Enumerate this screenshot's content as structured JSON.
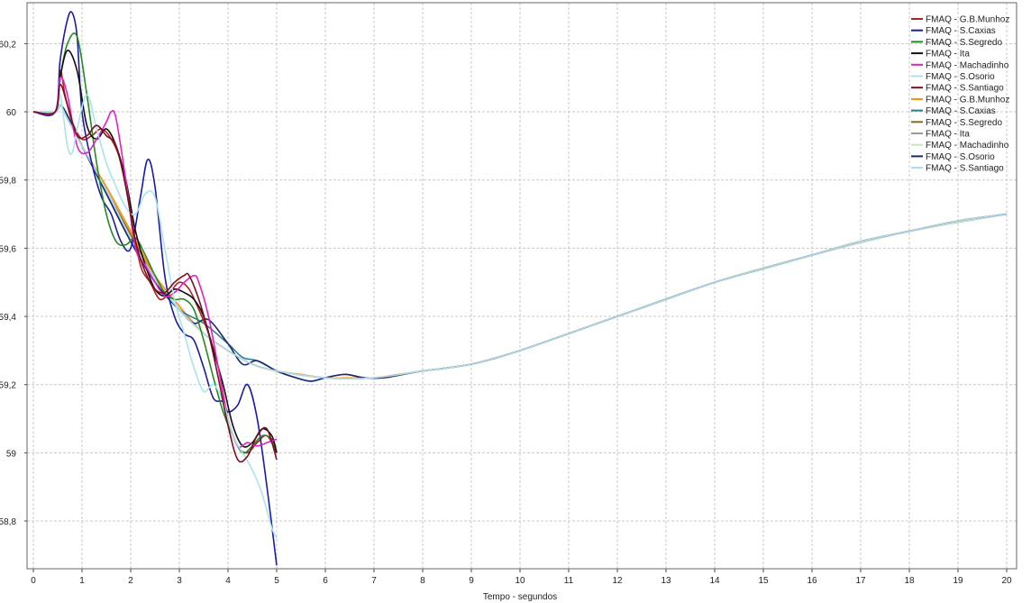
{
  "chart_data": {
    "type": "line",
    "title": "",
    "xlabel": "Tempo - segundos",
    "ylabel": "",
    "xlim": [
      0,
      20
    ],
    "ylim": [
      58.66,
      60.32
    ],
    "xticks": [
      0,
      1,
      2,
      3,
      4,
      5,
      6,
      7,
      8,
      9,
      10,
      11,
      12,
      13,
      14,
      15,
      16,
      17,
      18,
      19,
      20
    ],
    "xtick_labels": [
      "0",
      "1",
      "2",
      "3",
      "4",
      "5",
      "6",
      "7",
      "8",
      "9",
      "10",
      "11",
      "12",
      "13",
      "14",
      "15",
      "16",
      "17",
      "18",
      "19",
      "20"
    ],
    "yticks": [
      58.8,
      59,
      59.2,
      59.4,
      59.6,
      59.8,
      60,
      60.2
    ],
    "ytick_labels": [
      "58,8",
      "59",
      "59,2",
      "59,4",
      "59,6",
      "59,8",
      "60",
      "60,2"
    ],
    "grid": true,
    "legend_position": "top-right",
    "series": [
      {
        "name": "FMAQ - G.B.Munhoz",
        "color": "#b22222",
        "x": [
          0,
          0.45,
          0.55,
          0.65,
          0.8,
          1.0,
          1.2,
          1.4,
          1.6,
          1.8,
          2.0,
          2.2,
          2.4,
          2.6,
          2.8,
          3.0,
          3.2,
          3.4,
          3.6,
          3.8,
          4.0,
          4.2,
          4.4,
          4.6,
          4.8,
          5.0
        ],
        "y": [
          60,
          60,
          60.12,
          60.05,
          59.97,
          59.92,
          59.93,
          59.95,
          59.92,
          59.85,
          59.7,
          59.55,
          59.5,
          59.45,
          59.47,
          59.5,
          59.48,
          59.42,
          59.35,
          59.25,
          59.1,
          59.02,
          59.0,
          59.03,
          59.05,
          59.0
        ]
      },
      {
        "name": "FMAQ - S.Caxias",
        "color": "#1a1aa6",
        "x": [
          0,
          0.45,
          0.55,
          0.7,
          0.8,
          0.9,
          1.0,
          1.2,
          1.4,
          1.6,
          1.8,
          2.0,
          2.2,
          2.35,
          2.5,
          2.7,
          2.9,
          3.1,
          3.3,
          3.5,
          3.7,
          3.9,
          4.0,
          4.2,
          4.4,
          4.6,
          4.8,
          5.0
        ],
        "y": [
          60,
          60,
          60.15,
          60.27,
          60.29,
          60.22,
          60.0,
          59.85,
          59.75,
          59.7,
          59.62,
          59.6,
          59.75,
          59.86,
          59.78,
          59.52,
          59.4,
          59.35,
          59.33,
          59.25,
          59.16,
          59.15,
          59.12,
          59.14,
          59.2,
          59.1,
          58.9,
          58.67
        ]
      },
      {
        "name": "FMAQ - S.Segredo",
        "color": "#228b22",
        "x": [
          0,
          0.45,
          0.55,
          0.7,
          0.9,
          1.1,
          1.3,
          1.5,
          1.7,
          1.9,
          2.1,
          2.3,
          2.5,
          2.7,
          2.9,
          3.1,
          3.3,
          3.5,
          3.7,
          3.9,
          4.1,
          4.3,
          4.5,
          4.7,
          4.9,
          5.0
        ],
        "y": [
          60,
          60,
          60.1,
          60.2,
          60.22,
          60.05,
          59.85,
          59.7,
          59.62,
          59.61,
          59.63,
          59.58,
          59.52,
          59.47,
          59.45,
          59.45,
          59.42,
          59.33,
          59.22,
          59.12,
          59.05,
          59.0,
          59.02,
          59.05,
          59.04,
          59.0
        ]
      },
      {
        "name": "FMAQ - Ita",
        "color": "#111111",
        "x": [
          0,
          0.45,
          0.55,
          0.7,
          0.9,
          1.1,
          1.3,
          1.5,
          1.7,
          1.9,
          2.1,
          2.3,
          2.5,
          2.7,
          2.9,
          3.1,
          3.3,
          3.5,
          3.7,
          3.9,
          4.1,
          4.3,
          4.5,
          4.7,
          4.9,
          5.0
        ],
        "y": [
          60,
          60,
          60.1,
          60.18,
          60.12,
          59.96,
          59.92,
          59.95,
          59.9,
          59.8,
          59.65,
          59.55,
          59.48,
          59.46,
          59.48,
          59.47,
          59.45,
          59.4,
          59.3,
          59.2,
          59.08,
          59.02,
          59.03,
          59.07,
          59.05,
          59.0
        ]
      },
      {
        "name": "FMAQ - Machadinho",
        "color": "#e020c8",
        "x": [
          0,
          0.45,
          0.55,
          0.7,
          0.9,
          1.1,
          1.3,
          1.5,
          1.6,
          1.7,
          1.9,
          2.1,
          2.3,
          2.5,
          2.7,
          2.9,
          3.1,
          3.3,
          3.4,
          3.6,
          3.8,
          4.0,
          4.2,
          4.4,
          4.6,
          4.8,
          5.0
        ],
        "y": [
          60,
          60,
          60.1,
          60.05,
          59.9,
          59.88,
          59.92,
          59.97,
          60.0,
          59.98,
          59.8,
          59.6,
          59.55,
          59.5,
          59.46,
          59.47,
          59.5,
          59.52,
          59.5,
          59.4,
          59.25,
          59.1,
          59.02,
          59.03,
          59.02,
          59.03,
          59.04
        ]
      },
      {
        "name": "FMAQ - S.Osorio",
        "color": "#a8e4f0",
        "x": [
          0,
          0.45,
          0.55,
          0.7,
          0.8,
          0.9,
          1.1,
          1.3,
          1.5,
          1.7,
          1.9,
          2.1,
          2.3,
          2.5,
          2.7,
          2.9,
          3.1,
          3.3,
          3.5,
          3.7,
          3.9,
          4.1,
          4.3,
          4.5,
          4.7,
          4.9,
          5.0
        ],
        "y": [
          60,
          60,
          60.05,
          59.9,
          59.88,
          59.95,
          60.05,
          59.95,
          59.85,
          59.78,
          59.72,
          59.7,
          59.76,
          59.75,
          59.6,
          59.45,
          59.35,
          59.25,
          59.18,
          59.2,
          59.15,
          59.05,
          59.0,
          58.95,
          58.88,
          58.78,
          58.75
        ]
      },
      {
        "name": "FMAQ - S.Santiago",
        "color": "#7a1020",
        "x": [
          0,
          0.45,
          0.55,
          0.7,
          0.9,
          1.1,
          1.3,
          1.5,
          1.7,
          1.9,
          2.1,
          2.3,
          2.5,
          2.7,
          2.9,
          3.1,
          3.2,
          3.4,
          3.6,
          3.8,
          4.0,
          4.2,
          4.4,
          4.6,
          4.8,
          5.0
        ],
        "y": [
          60,
          60,
          60.08,
          60.02,
          59.93,
          59.93,
          59.96,
          59.93,
          59.9,
          59.78,
          59.62,
          59.53,
          59.48,
          59.47,
          59.5,
          59.52,
          59.52,
          59.45,
          59.35,
          59.22,
          59.08,
          58.98,
          58.99,
          59.05,
          59.07,
          58.98
        ]
      },
      {
        "name": "FMAQ - G.B.Munhoz",
        "color": "#ff8c00",
        "x": [
          0,
          0.45,
          0.55,
          0.7,
          1.0,
          1.5,
          2.0,
          2.5,
          3.0,
          3.5,
          4.0,
          4.5,
          5.0,
          5.5,
          6.0,
          6.5,
          7.0,
          7.5,
          8.0,
          9.0,
          10.0,
          11.0,
          12.0,
          13.0,
          14.0,
          15.0,
          16.0,
          17.0,
          18.0,
          19.0,
          20.0
        ],
        "y": [
          60,
          60,
          60.02,
          59.99,
          59.9,
          59.78,
          59.65,
          59.52,
          59.43,
          59.35,
          59.3,
          59.26,
          59.24,
          59.23,
          59.22,
          59.22,
          59.22,
          59.23,
          59.24,
          59.26,
          59.3,
          59.35,
          59.4,
          59.45,
          59.5,
          59.54,
          59.58,
          59.62,
          59.65,
          59.68,
          59.7
        ]
      },
      {
        "name": "FMAQ - S.Caxias",
        "color": "#2e7d96",
        "x": [
          0,
          0.45,
          0.55,
          0.7,
          1.0,
          1.5,
          2.0,
          2.5,
          3.0,
          3.5,
          4.0,
          4.3,
          4.6,
          5.0,
          5.4,
          5.7,
          6.0,
          6.4,
          6.8,
          7.2,
          7.6,
          8.0,
          9.0,
          10.0,
          11.0,
          12.0,
          13.0,
          14.0,
          15.0,
          16.0,
          17.0,
          18.0,
          19.0,
          20.0
        ],
        "y": [
          60,
          60,
          60.02,
          59.99,
          59.9,
          59.76,
          59.62,
          59.5,
          59.42,
          59.38,
          59.32,
          59.28,
          59.27,
          59.24,
          59.22,
          59.21,
          59.22,
          59.23,
          59.22,
          59.22,
          59.23,
          59.24,
          59.26,
          59.3,
          59.35,
          59.4,
          59.45,
          59.5,
          59.54,
          59.58,
          59.62,
          59.65,
          59.68,
          59.7
        ]
      },
      {
        "name": "FMAQ - S.Segredo",
        "color": "#8b6914",
        "x": [
          0,
          0.45,
          0.55,
          0.7,
          1.0,
          1.5,
          2.0,
          2.5,
          3.0,
          3.5,
          4.0,
          4.5,
          5.0,
          6.0,
          7.0,
          8.0,
          9.0,
          10.0,
          12.0,
          14.0,
          16.0,
          18.0,
          20.0
        ],
        "y": [
          60,
          60,
          60.02,
          59.98,
          59.9,
          59.77,
          59.64,
          59.51,
          59.42,
          59.35,
          59.3,
          59.26,
          59.24,
          59.22,
          59.22,
          59.24,
          59.26,
          59.3,
          59.4,
          59.5,
          59.58,
          59.65,
          59.7
        ]
      },
      {
        "name": "FMAQ - Ita",
        "color": "#999999",
        "x": [
          0,
          0.45,
          0.55,
          0.7,
          1.0,
          1.5,
          2.0,
          2.5,
          3.0,
          3.5,
          4.0,
          4.5,
          5.0,
          6.0,
          7.0,
          8.0,
          9.0,
          10.0,
          12.0,
          14.0,
          16.0,
          18.0,
          20.0
        ],
        "y": [
          60,
          60,
          60.02,
          59.98,
          59.9,
          59.77,
          59.63,
          59.51,
          59.42,
          59.35,
          59.3,
          59.26,
          59.24,
          59.22,
          59.22,
          59.24,
          59.26,
          59.3,
          59.4,
          59.5,
          59.58,
          59.65,
          59.7
        ]
      },
      {
        "name": "FMAQ - Machadinho",
        "color": "#c8e6c0",
        "x": [
          0,
          0.45,
          0.55,
          0.7,
          1.0,
          1.5,
          2.0,
          2.5,
          3.0,
          3.5,
          4.0,
          4.5,
          5.0,
          6.0,
          7.0,
          8.0,
          9.0,
          10.0,
          12.0,
          14.0,
          16.0,
          18.0,
          20.0
        ],
        "y": [
          60,
          60,
          60.02,
          59.98,
          59.9,
          59.77,
          59.63,
          59.51,
          59.42,
          59.35,
          59.3,
          59.26,
          59.24,
          59.22,
          59.22,
          59.24,
          59.26,
          59.3,
          59.4,
          59.5,
          59.58,
          59.65,
          59.7
        ]
      },
      {
        "name": "FMAQ - S.Osorio",
        "color": "#1c2a6e",
        "x": [
          0,
          0.45,
          0.55,
          0.7,
          1.0,
          1.5,
          2.0,
          2.5,
          3.0,
          3.3,
          3.6,
          4.0,
          4.3,
          4.6,
          5.0,
          5.4,
          5.7,
          6.0,
          6.4,
          6.8,
          7.2,
          7.6,
          8.0,
          9.0,
          10.0,
          11.0,
          12.0,
          13.0,
          14.0,
          15.0,
          16.0,
          17.0,
          18.0,
          19.0,
          20.0
        ],
        "y": [
          60,
          60,
          60.02,
          59.99,
          59.9,
          59.76,
          59.62,
          59.5,
          59.42,
          59.38,
          59.39,
          59.32,
          59.26,
          59.27,
          59.24,
          59.22,
          59.21,
          59.22,
          59.23,
          59.22,
          59.22,
          59.23,
          59.24,
          59.26,
          59.3,
          59.35,
          59.4,
          59.45,
          59.5,
          59.54,
          59.58,
          59.62,
          59.65,
          59.68,
          59.7
        ]
      },
      {
        "name": "FMAQ - S.Santiago",
        "color": "#b0d8e8",
        "x": [
          0,
          0.45,
          0.55,
          0.7,
          1.0,
          1.5,
          2.0,
          2.5,
          3.0,
          3.5,
          4.0,
          4.5,
          5.0,
          6.0,
          7.0,
          8.0,
          9.0,
          10.0,
          11.0,
          12.0,
          13.0,
          14.0,
          15.0,
          16.0,
          17.0,
          18.0,
          19.0,
          20.0
        ],
        "y": [
          60,
          60,
          60.02,
          59.98,
          59.9,
          59.77,
          59.63,
          59.51,
          59.42,
          59.35,
          59.3,
          59.26,
          59.24,
          59.22,
          59.22,
          59.24,
          59.26,
          59.3,
          59.35,
          59.4,
          59.45,
          59.5,
          59.54,
          59.58,
          59.62,
          59.65,
          59.68,
          59.7
        ]
      }
    ]
  }
}
